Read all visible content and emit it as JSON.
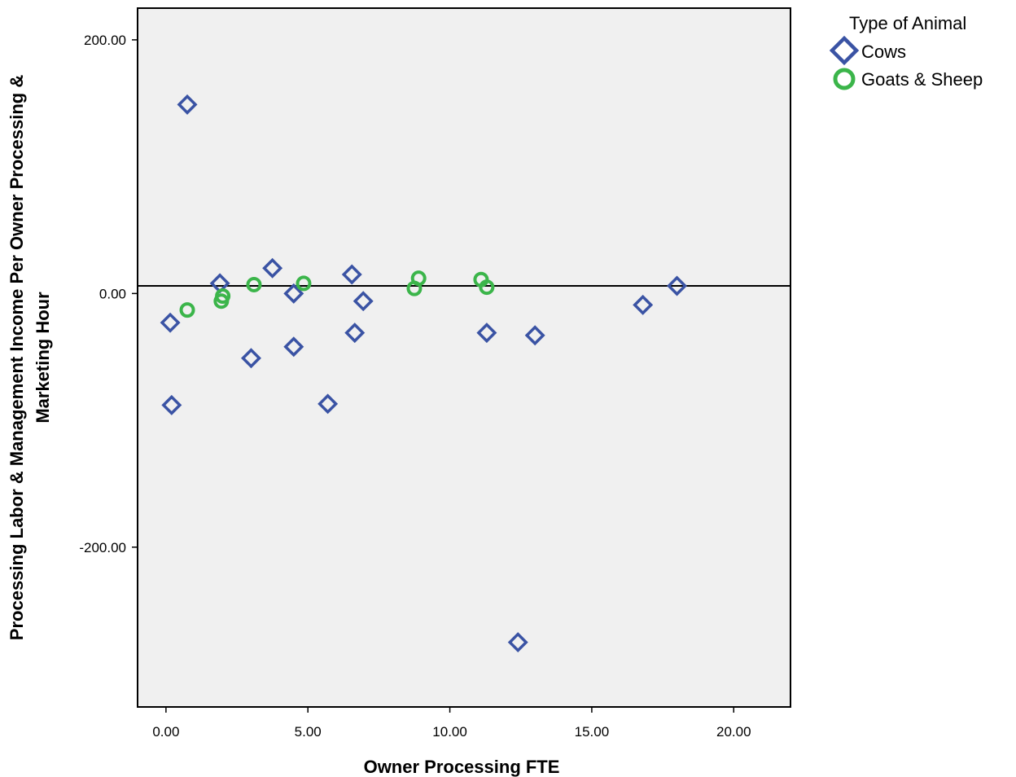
{
  "chart_data": {
    "type": "scatter",
    "title": "",
    "xlabel": "Owner Processing FTE",
    "ylabel_line1": "Processing Labor & Management Income Per Owner Processing &",
    "ylabel_line2": "Marketing Hour",
    "xlim": [
      -1,
      22
    ],
    "ylim": [
      -326,
      225
    ],
    "xticks": [
      0,
      5,
      10,
      15,
      20
    ],
    "xtick_labels": [
      "0.00",
      "5.00",
      "10.00",
      "15.00",
      "20.00"
    ],
    "yticks": [
      200,
      0,
      -200
    ],
    "ytick_labels": [
      "200.00",
      "0.00",
      "-200.00"
    ],
    "reference_line_y": 6,
    "grid": false,
    "legend": {
      "title": "Type of Animal",
      "placement": "top-right"
    },
    "series": [
      {
        "name": "Cows",
        "marker": "diamond",
        "color": "#3a53a4",
        "points": [
          [
            0.75,
            149
          ],
          [
            0.15,
            -23
          ],
          [
            0.2,
            -88
          ],
          [
            1.9,
            8
          ],
          [
            3.0,
            -51
          ],
          [
            3.75,
            20
          ],
          [
            4.5,
            0
          ],
          [
            4.5,
            -42
          ],
          [
            5.7,
            -87
          ],
          [
            6.55,
            15
          ],
          [
            6.65,
            -31
          ],
          [
            6.95,
            -6
          ],
          [
            11.3,
            -31
          ],
          [
            12.4,
            -275
          ],
          [
            13.0,
            -33
          ],
          [
            16.8,
            -9
          ],
          [
            18.0,
            6
          ]
        ]
      },
      {
        "name": "Goats & Sheep",
        "marker": "circle",
        "color": "#3bb54a",
        "points": [
          [
            0.75,
            -13
          ],
          [
            2.0,
            -2
          ],
          [
            1.95,
            -6
          ],
          [
            3.1,
            7
          ],
          [
            4.85,
            8
          ],
          [
            8.75,
            4
          ],
          [
            8.9,
            12
          ],
          [
            11.1,
            11
          ],
          [
            11.3,
            5
          ]
        ]
      }
    ]
  }
}
